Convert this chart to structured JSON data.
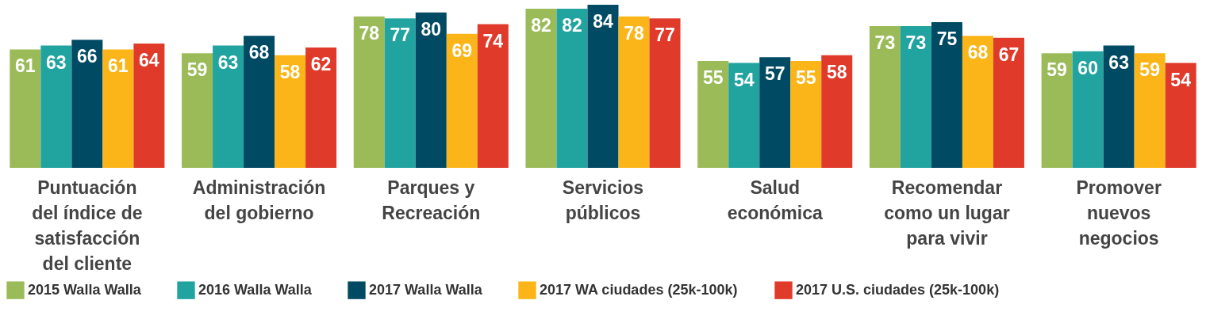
{
  "chart_data": {
    "type": "bar",
    "categories": [
      "Puntuación del índice de satisfacción del cliente",
      "Administración del gobierno",
      "Parques y Recreación",
      "Servicios públicos",
      "Salud económica",
      "Recomendar como un lugar para vivir",
      "Promover nuevos negocios"
    ],
    "series": [
      {
        "name": "2015 Walla Walla",
        "color": "#9bbb59",
        "values": [
          61,
          59,
          78,
          82,
          55,
          73,
          59
        ]
      },
      {
        "name": "2016 Walla Walla",
        "color": "#21a3a0",
        "values": [
          63,
          63,
          77,
          82,
          54,
          73,
          60
        ]
      },
      {
        "name": "2017 Walla Walla",
        "color": "#004a63",
        "values": [
          66,
          68,
          80,
          84,
          57,
          75,
          63
        ]
      },
      {
        "name": "2017 WA ciudades (25k-100k)",
        "color": "#fbb518",
        "values": [
          61,
          58,
          69,
          78,
          55,
          68,
          59
        ]
      },
      {
        "name": "2017 U.S. ciudades (25k-100k)",
        "color": "#e03a2a",
        "values": [
          64,
          62,
          74,
          77,
          58,
          67,
          54
        ]
      }
    ],
    "data_labels": true,
    "grid": false,
    "legend": "bottom"
  }
}
